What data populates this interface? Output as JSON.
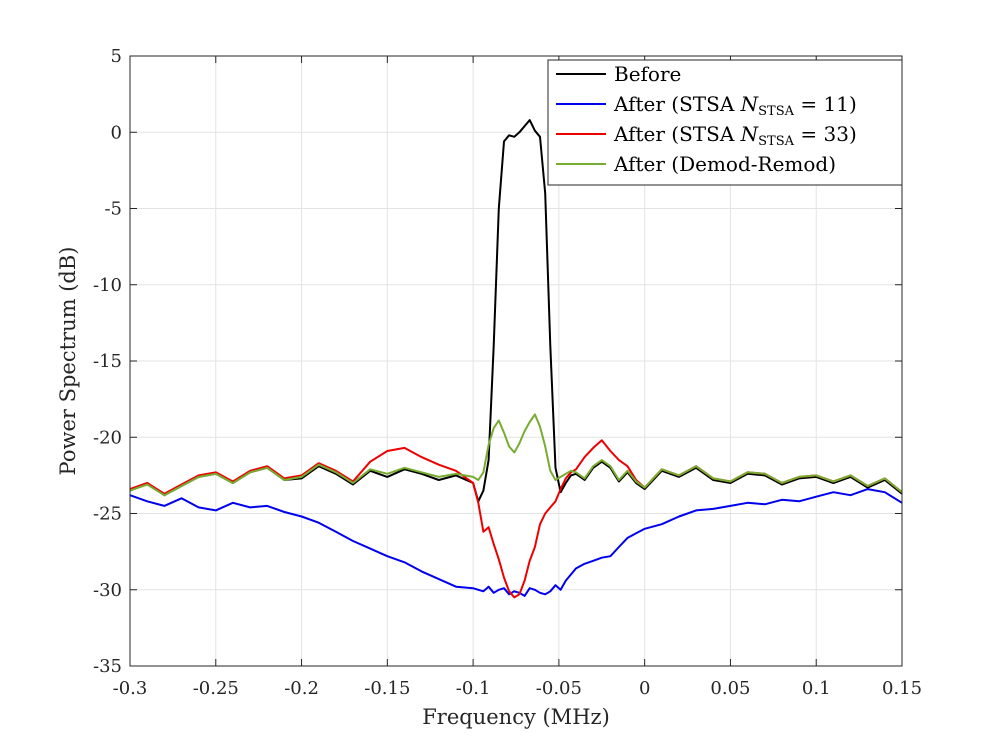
{
  "chart_data": {
    "type": "line",
    "title": "",
    "xlabel": "Frequency (MHz)",
    "ylabel": "Power Spectrum (dB)",
    "xlim": [
      -0.3,
      0.15
    ],
    "ylim": [
      -35,
      5
    ],
    "grid": true,
    "legend_position": "top-right",
    "xticks": [
      -0.3,
      -0.25,
      -0.2,
      -0.15,
      -0.1,
      -0.05,
      0,
      0.05,
      0.1,
      0.15
    ],
    "xtick_labels": [
      "-0.3",
      "-0.25",
      "-0.2",
      "-0.15",
      "-0.1",
      "-0.05",
      "0",
      "0.05",
      "0.1",
      "0.15"
    ],
    "yticks": [
      5,
      0,
      -5,
      -10,
      -15,
      -20,
      -25,
      -30,
      -35
    ],
    "ytick_labels": [
      "5",
      "0",
      "-5",
      "-10",
      "-15",
      "-20",
      "-25",
      "-30",
      "-35"
    ],
    "x": [
      -0.3,
      -0.29,
      -0.28,
      -0.27,
      -0.26,
      -0.25,
      -0.24,
      -0.23,
      -0.22,
      -0.21,
      -0.2,
      -0.19,
      -0.18,
      -0.17,
      -0.16,
      -0.15,
      -0.14,
      -0.13,
      -0.12,
      -0.11,
      -0.1,
      -0.097,
      -0.094,
      -0.091,
      -0.088,
      -0.085,
      -0.082,
      -0.079,
      -0.076,
      -0.073,
      -0.07,
      -0.067,
      -0.064,
      -0.061,
      -0.058,
      -0.055,
      -0.052,
      -0.049,
      -0.046,
      -0.043,
      -0.04,
      -0.035,
      -0.03,
      -0.025,
      -0.02,
      -0.015,
      -0.01,
      -0.005,
      0,
      0.01,
      0.02,
      0.03,
      0.04,
      0.05,
      0.06,
      0.07,
      0.08,
      0.09,
      0.1,
      0.11,
      0.12,
      0.13,
      0.14,
      0.15
    ],
    "series": [
      {
        "name": "Before",
        "color": "#000000",
        "values": [
          -23.5,
          -23.0,
          -23.8,
          -23.2,
          -22.6,
          -22.4,
          -23.0,
          -22.3,
          -22.0,
          -22.8,
          -22.7,
          -21.9,
          -22.4,
          -23.1,
          -22.2,
          -22.6,
          -22.1,
          -22.4,
          -22.8,
          -22.5,
          -23.0,
          -24.2,
          -23.5,
          -21.5,
          -14.0,
          -5.0,
          -0.6,
          -0.2,
          -0.3,
          0.0,
          0.4,
          0.8,
          0.1,
          -0.3,
          -4.0,
          -14.0,
          -22.0,
          -23.6,
          -23.0,
          -22.5,
          -22.4,
          -22.8,
          -22.0,
          -21.6,
          -22.0,
          -22.9,
          -22.3,
          -23.0,
          -23.4,
          -22.2,
          -22.6,
          -22.0,
          -22.8,
          -23.0,
          -22.4,
          -22.5,
          -23.1,
          -22.7,
          -22.6,
          -23.0,
          -22.6,
          -23.3,
          -22.8,
          -23.7
        ]
      },
      {
        "name": "After (STSA N_STSA = 11)",
        "color": "#0000ee",
        "values": [
          -23.8,
          -24.2,
          -24.5,
          -24.0,
          -24.6,
          -24.8,
          -24.3,
          -24.6,
          -24.5,
          -24.9,
          -25.2,
          -25.6,
          -26.2,
          -26.8,
          -27.3,
          -27.8,
          -28.2,
          -28.8,
          -29.3,
          -29.8,
          -29.9,
          -30.0,
          -30.1,
          -29.8,
          -30.2,
          -30.0,
          -29.9,
          -30.3,
          -30.1,
          -30.2,
          -30.4,
          -29.9,
          -30.0,
          -30.2,
          -30.3,
          -30.1,
          -29.7,
          -30.0,
          -29.4,
          -29.0,
          -28.6,
          -28.3,
          -28.1,
          -27.9,
          -27.8,
          -27.2,
          -26.6,
          -26.3,
          -26.0,
          -25.7,
          -25.2,
          -24.8,
          -24.7,
          -24.5,
          -24.3,
          -24.4,
          -24.1,
          -24.2,
          -23.9,
          -23.6,
          -23.8,
          -23.4,
          -23.6,
          -24.3
        ]
      },
      {
        "name": "After (STSA N_STSA = 33)",
        "color": "#ee0000",
        "values": [
          -23.4,
          -23.0,
          -23.7,
          -23.1,
          -22.5,
          -22.3,
          -22.9,
          -22.2,
          -21.9,
          -22.7,
          -22.5,
          -21.7,
          -22.2,
          -22.9,
          -21.6,
          -20.9,
          -20.7,
          -21.3,
          -21.8,
          -22.2,
          -23.0,
          -24.3,
          -26.2,
          -25.9,
          -27.0,
          -28.0,
          -29.2,
          -30.1,
          -30.5,
          -30.3,
          -29.4,
          -28.1,
          -27.2,
          -25.7,
          -25.0,
          -24.6,
          -24.2,
          -23.4,
          -22.7,
          -22.3,
          -22.1,
          -21.3,
          -20.7,
          -20.2,
          -20.9,
          -21.5,
          -21.9,
          -22.8,
          -23.3,
          -22.1,
          -22.5,
          -21.9,
          -22.7,
          -22.9,
          -22.3,
          -22.4,
          -23.0,
          -22.6,
          -22.5,
          -22.9,
          -22.5,
          -23.2,
          -22.7,
          -23.6
        ]
      },
      {
        "name": "After (Demod-Remod)",
        "color": "#77ac30",
        "values": [
          -23.5,
          -23.1,
          -23.8,
          -23.2,
          -22.6,
          -22.4,
          -23.0,
          -22.3,
          -22.0,
          -22.8,
          -22.6,
          -21.8,
          -22.3,
          -23.0,
          -22.1,
          -22.4,
          -22.0,
          -22.3,
          -22.6,
          -22.4,
          -22.6,
          -22.8,
          -22.3,
          -20.5,
          -19.4,
          -18.9,
          -19.7,
          -20.6,
          -21.0,
          -20.4,
          -19.6,
          -19.0,
          -18.5,
          -19.3,
          -20.6,
          -22.2,
          -22.8,
          -22.6,
          -22.4,
          -22.2,
          -22.3,
          -22.7,
          -21.9,
          -21.5,
          -21.9,
          -22.8,
          -22.2,
          -22.9,
          -23.3,
          -22.1,
          -22.5,
          -21.9,
          -22.7,
          -22.9,
          -22.3,
          -22.4,
          -23.0,
          -22.6,
          -22.5,
          -22.9,
          -22.5,
          -23.2,
          -22.7,
          -23.6
        ]
      }
    ]
  },
  "legend": {
    "before": "Before",
    "stsa11_prefix": "After (STSA ",
    "stsa11_eq": " = 11)",
    "stsa33_prefix": "After (STSA ",
    "stsa33_eq": " = 33)",
    "nstsa_symbol": "N",
    "nstsa_sub": "STSA",
    "demod": "After (Demod-Remod)"
  }
}
